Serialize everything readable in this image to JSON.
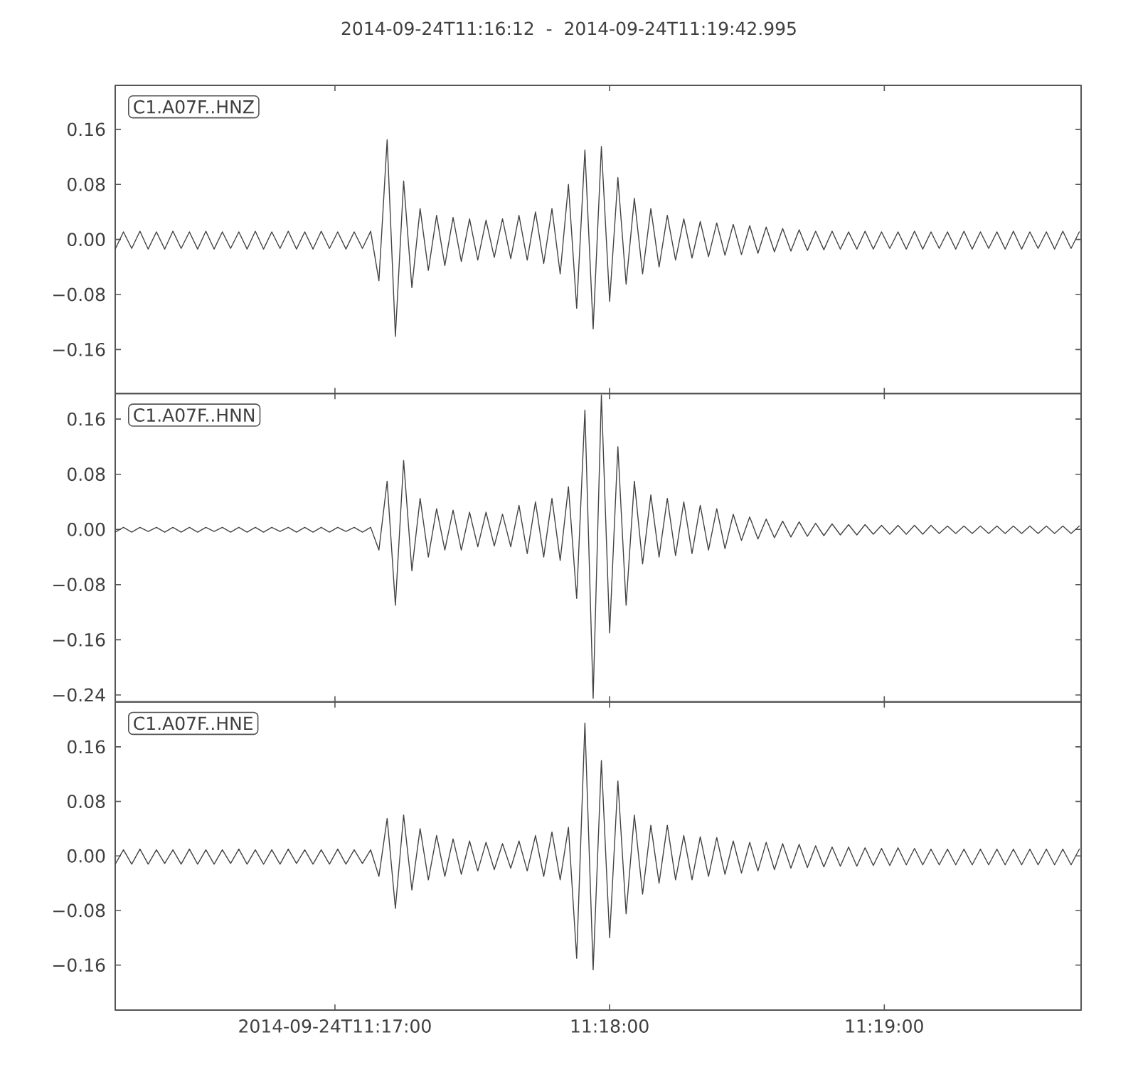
{
  "chart_data": [
    {
      "type": "line",
      "title": "2014-09-24T11:16:12  -  2014-09-24T11:19:42.995",
      "annotations": [
        "C1.A07F..HNZ"
      ],
      "color": "#444444",
      "tick_labels": "y",
      "xlim": [
        11.27,
        11.32861
      ],
      "ylim": [
        -0.224,
        0.224
      ],
      "xticks": [
        11.283333,
        11.3,
        11.316667
      ],
      "yticks": [
        {
          "value": -0.16,
          "label": "−0.16"
        },
        {
          "value": -0.08,
          "label": "−0.08"
        },
        {
          "value": 0,
          "label": "0.00"
        },
        {
          "value": 0.08,
          "label": "0.08"
        },
        {
          "value": 0.16,
          "label": "0.16"
        }
      ],
      "x": [
        11.27,
        11.2705,
        11.271,
        11.2715,
        11.272,
        11.2725,
        11.273,
        11.2735,
        11.274,
        11.2745,
        11.275,
        11.2755,
        11.276,
        11.2765,
        11.277,
        11.2775,
        11.278,
        11.2785,
        11.279,
        11.2795,
        11.28,
        11.2805,
        11.281,
        11.2815,
        11.282,
        11.2825,
        11.283,
        11.2835,
        11.284,
        11.2845,
        11.285,
        11.2855,
        11.286,
        11.2865,
        11.287,
        11.2875,
        11.288,
        11.2885,
        11.289,
        11.2895,
        11.29,
        11.2905,
        11.291,
        11.2915,
        11.292,
        11.2925,
        11.293,
        11.2935,
        11.294,
        11.2945,
        11.295,
        11.2955,
        11.296,
        11.2965,
        11.297,
        11.2975,
        11.298,
        11.2985,
        11.299,
        11.2995,
        11.3,
        11.3005,
        11.301,
        11.3015,
        11.302,
        11.3025,
        11.303,
        11.3035,
        11.304,
        11.3045,
        11.305,
        11.3055,
        11.306,
        11.3065,
        11.307,
        11.3075,
        11.308,
        11.3085,
        11.309,
        11.3095,
        11.31,
        11.3105,
        11.311,
        11.3115,
        11.312,
        11.3125,
        11.313,
        11.3135,
        11.314,
        11.3145,
        11.315,
        11.3155,
        11.316,
        11.3165,
        11.317,
        11.3175,
        11.318,
        11.3185,
        11.319,
        11.3195,
        11.32,
        11.3205,
        11.321,
        11.3215,
        11.322,
        11.3225,
        11.323,
        11.3235,
        11.324,
        11.3245,
        11.325,
        11.3255,
        11.326,
        11.3265,
        11.327,
        11.3275,
        11.328,
        11.3285
      ],
      "values": [
        -0.014,
        0.011,
        -0.013,
        0.012,
        -0.014,
        0.011,
        -0.014,
        0.012,
        -0.013,
        0.011,
        -0.014,
        0.012,
        -0.014,
        0.011,
        -0.013,
        0.011,
        -0.014,
        0.012,
        -0.014,
        0.011,
        -0.013,
        0.012,
        -0.014,
        0.011,
        -0.014,
        0.012,
        -0.013,
        0.011,
        -0.014,
        0.011,
        -0.013,
        0.012,
        -0.06,
        0.145,
        -0.141,
        0.085,
        -0.07,
        0.045,
        -0.045,
        0.035,
        -0.038,
        0.032,
        -0.032,
        0.03,
        -0.03,
        0.028,
        -0.026,
        0.03,
        -0.028,
        0.035,
        -0.03,
        0.04,
        -0.035,
        0.045,
        -0.05,
        0.08,
        -0.1,
        0.13,
        -0.13,
        0.135,
        -0.09,
        0.09,
        -0.065,
        0.06,
        -0.05,
        0.045,
        -0.04,
        0.035,
        -0.03,
        0.03,
        -0.027,
        0.026,
        -0.025,
        0.024,
        -0.023,
        0.022,
        -0.022,
        0.02,
        -0.02,
        0.018,
        -0.018,
        0.016,
        -0.017,
        0.014,
        -0.016,
        0.012,
        -0.015,
        0.012,
        -0.014,
        0.011,
        -0.014,
        0.012,
        -0.014,
        0.011,
        -0.013,
        0.011,
        -0.014,
        0.012,
        -0.014,
        0.011,
        -0.013,
        0.011,
        -0.014,
        0.012,
        -0.014,
        0.011,
        -0.013,
        0.011,
        -0.014,
        0.012,
        -0.014,
        0.011,
        -0.013,
        0.011,
        -0.014,
        0.012,
        -0.013,
        0.011
      ]
    },
    {
      "type": "line",
      "annotations": [
        "C1.A07F..HNN"
      ],
      "color": "#444444",
      "tick_labels": "y",
      "xlim": [
        11.27,
        11.32861
      ],
      "ylim": [
        -0.25,
        0.197
      ],
      "xticks": [
        11.283333,
        11.3,
        11.316667
      ],
      "yticks": [
        {
          "value": -0.24,
          "label": "−0.24"
        },
        {
          "value": -0.16,
          "label": "−0.16"
        },
        {
          "value": -0.08,
          "label": "−0.08"
        },
        {
          "value": 0,
          "label": "0.00"
        },
        {
          "value": 0.08,
          "label": "0.08"
        },
        {
          "value": 0.16,
          "label": "0.16"
        }
      ],
      "x": [
        11.27,
        11.2705,
        11.271,
        11.2715,
        11.272,
        11.2725,
        11.273,
        11.2735,
        11.274,
        11.2745,
        11.275,
        11.2755,
        11.276,
        11.2765,
        11.277,
        11.2775,
        11.278,
        11.2785,
        11.279,
        11.2795,
        11.28,
        11.2805,
        11.281,
        11.2815,
        11.282,
        11.2825,
        11.283,
        11.2835,
        11.284,
        11.2845,
        11.285,
        11.2855,
        11.286,
        11.2865,
        11.287,
        11.2875,
        11.288,
        11.2885,
        11.289,
        11.2895,
        11.29,
        11.2905,
        11.291,
        11.2915,
        11.292,
        11.2925,
        11.293,
        11.2935,
        11.294,
        11.2945,
        11.295,
        11.2955,
        11.296,
        11.2965,
        11.297,
        11.2975,
        11.298,
        11.2985,
        11.299,
        11.2995,
        11.3,
        11.3005,
        11.301,
        11.3015,
        11.302,
        11.3025,
        11.303,
        11.3035,
        11.304,
        11.3045,
        11.305,
        11.3055,
        11.306,
        11.3065,
        11.307,
        11.3075,
        11.308,
        11.3085,
        11.309,
        11.3095,
        11.31,
        11.3105,
        11.311,
        11.3115,
        11.312,
        11.3125,
        11.313,
        11.3135,
        11.314,
        11.3145,
        11.315,
        11.3155,
        11.316,
        11.3165,
        11.317,
        11.3175,
        11.318,
        11.3185,
        11.319,
        11.3195,
        11.32,
        11.3205,
        11.321,
        11.3215,
        11.322,
        11.3225,
        11.323,
        11.3235,
        11.324,
        11.3245,
        11.325,
        11.3255,
        11.326,
        11.3265,
        11.327,
        11.3275,
        11.328,
        11.3285
      ],
      "values": [
        -0.004,
        0.003,
        -0.004,
        0.003,
        -0.003,
        0.003,
        -0.004,
        0.003,
        -0.004,
        0.003,
        -0.004,
        0.003,
        -0.003,
        0.003,
        -0.004,
        0.003,
        -0.004,
        0.003,
        -0.004,
        0.003,
        -0.003,
        0.003,
        -0.004,
        0.003,
        -0.004,
        0.003,
        -0.004,
        0.003,
        -0.003,
        0.003,
        -0.004,
        0.003,
        -0.03,
        0.07,
        -0.11,
        0.1,
        -0.06,
        0.045,
        -0.04,
        0.03,
        -0.03,
        0.028,
        -0.03,
        0.025,
        -0.025,
        0.025,
        -0.024,
        0.022,
        -0.025,
        0.035,
        -0.035,
        0.04,
        -0.04,
        0.045,
        -0.045,
        0.062,
        -0.1,
        0.173,
        -0.245,
        0.195,
        -0.15,
        0.12,
        -0.11,
        0.07,
        -0.05,
        0.05,
        -0.04,
        0.045,
        -0.038,
        0.04,
        -0.035,
        0.035,
        -0.03,
        0.03,
        -0.028,
        0.022,
        -0.016,
        0.018,
        -0.014,
        0.015,
        -0.012,
        0.012,
        -0.011,
        0.011,
        -0.01,
        0.009,
        -0.009,
        0.008,
        -0.008,
        0.007,
        -0.008,
        0.007,
        -0.007,
        0.006,
        -0.007,
        0.006,
        -0.007,
        0.006,
        -0.007,
        0.006,
        -0.006,
        0.005,
        -0.006,
        0.005,
        -0.006,
        0.005,
        -0.006,
        0.005,
        -0.006,
        0.005,
        -0.006,
        0.005,
        -0.006,
        0.005,
        -0.006,
        0.005,
        -0.006,
        0.005
      ]
    },
    {
      "type": "line",
      "annotations": [
        "C1.A07F..HNE"
      ],
      "color": "#444444",
      "xlim": [
        11.27,
        11.32861
      ],
      "ylim": [
        -0.226,
        0.226
      ],
      "xticks": [
        {
          "value": 11.283333,
          "label": "2014-09-24T11:17:00"
        },
        {
          "value": 11.3,
          "label": "11:18:00"
        },
        {
          "value": 11.316667,
          "label": "11:19:00"
        }
      ],
      "yticks": [
        {
          "value": -0.16,
          "label": "−0.16"
        },
        {
          "value": -0.08,
          "label": "−0.08"
        },
        {
          "value": 0,
          "label": "0.00"
        },
        {
          "value": 0.08,
          "label": "0.08"
        },
        {
          "value": 0.16,
          "label": "0.16"
        }
      ],
      "x": [
        11.27,
        11.2705,
        11.271,
        11.2715,
        11.272,
        11.2725,
        11.273,
        11.2735,
        11.274,
        11.2745,
        11.275,
        11.2755,
        11.276,
        11.2765,
        11.277,
        11.2775,
        11.278,
        11.2785,
        11.279,
        11.2795,
        11.28,
        11.2805,
        11.281,
        11.2815,
        11.282,
        11.2825,
        11.283,
        11.2835,
        11.284,
        11.2845,
        11.285,
        11.2855,
        11.286,
        11.2865,
        11.287,
        11.2875,
        11.288,
        11.2885,
        11.289,
        11.2895,
        11.29,
        11.2905,
        11.291,
        11.2915,
        11.292,
        11.2925,
        11.293,
        11.2935,
        11.294,
        11.2945,
        11.295,
        11.2955,
        11.296,
        11.2965,
        11.297,
        11.2975,
        11.298,
        11.2985,
        11.299,
        11.2995,
        11.3,
        11.3005,
        11.301,
        11.3015,
        11.302,
        11.3025,
        11.303,
        11.3035,
        11.304,
        11.3045,
        11.305,
        11.3055,
        11.306,
        11.3065,
        11.307,
        11.3075,
        11.308,
        11.3085,
        11.309,
        11.3095,
        11.31,
        11.3105,
        11.311,
        11.3115,
        11.312,
        11.3125,
        11.313,
        11.3135,
        11.314,
        11.3145,
        11.315,
        11.3155,
        11.316,
        11.3165,
        11.317,
        11.3175,
        11.318,
        11.3185,
        11.319,
        11.3195,
        11.32,
        11.3205,
        11.321,
        11.3215,
        11.322,
        11.3225,
        11.323,
        11.3235,
        11.324,
        11.3245,
        11.325,
        11.3255,
        11.326,
        11.3265,
        11.327,
        11.3275,
        11.328,
        11.3285
      ],
      "values": [
        -0.012,
        0.009,
        -0.012,
        0.01,
        -0.012,
        0.009,
        -0.011,
        0.009,
        -0.012,
        0.01,
        -0.012,
        0.009,
        -0.012,
        0.009,
        -0.011,
        0.01,
        -0.012,
        0.009,
        -0.012,
        0.009,
        -0.012,
        0.01,
        -0.011,
        0.009,
        -0.012,
        0.009,
        -0.012,
        0.01,
        -0.012,
        0.009,
        -0.011,
        0.009,
        -0.03,
        0.055,
        -0.077,
        0.06,
        -0.05,
        0.04,
        -0.035,
        0.03,
        -0.03,
        0.025,
        -0.027,
        0.022,
        -0.022,
        0.02,
        -0.02,
        0.018,
        -0.018,
        0.022,
        -0.022,
        0.03,
        -0.03,
        0.035,
        -0.035,
        0.042,
        -0.15,
        0.195,
        -0.167,
        0.14,
        -0.12,
        0.11,
        -0.085,
        0.06,
        -0.056,
        0.045,
        -0.04,
        0.045,
        -0.035,
        0.03,
        -0.035,
        0.028,
        -0.03,
        0.027,
        -0.027,
        0.022,
        -0.025,
        0.02,
        -0.022,
        0.02,
        -0.02,
        0.018,
        -0.018,
        0.017,
        -0.017,
        0.015,
        -0.016,
        0.013,
        -0.015,
        0.013,
        -0.015,
        0.012,
        -0.014,
        0.011,
        -0.014,
        0.012,
        -0.013,
        0.011,
        -0.013,
        0.01,
        -0.013,
        0.01,
        -0.013,
        0.01,
        -0.013,
        0.01,
        -0.013,
        0.01,
        -0.013,
        0.01,
        -0.013,
        0.01,
        -0.013,
        0.01,
        -0.013,
        0.01,
        -0.013,
        0.01
      ]
    }
  ]
}
